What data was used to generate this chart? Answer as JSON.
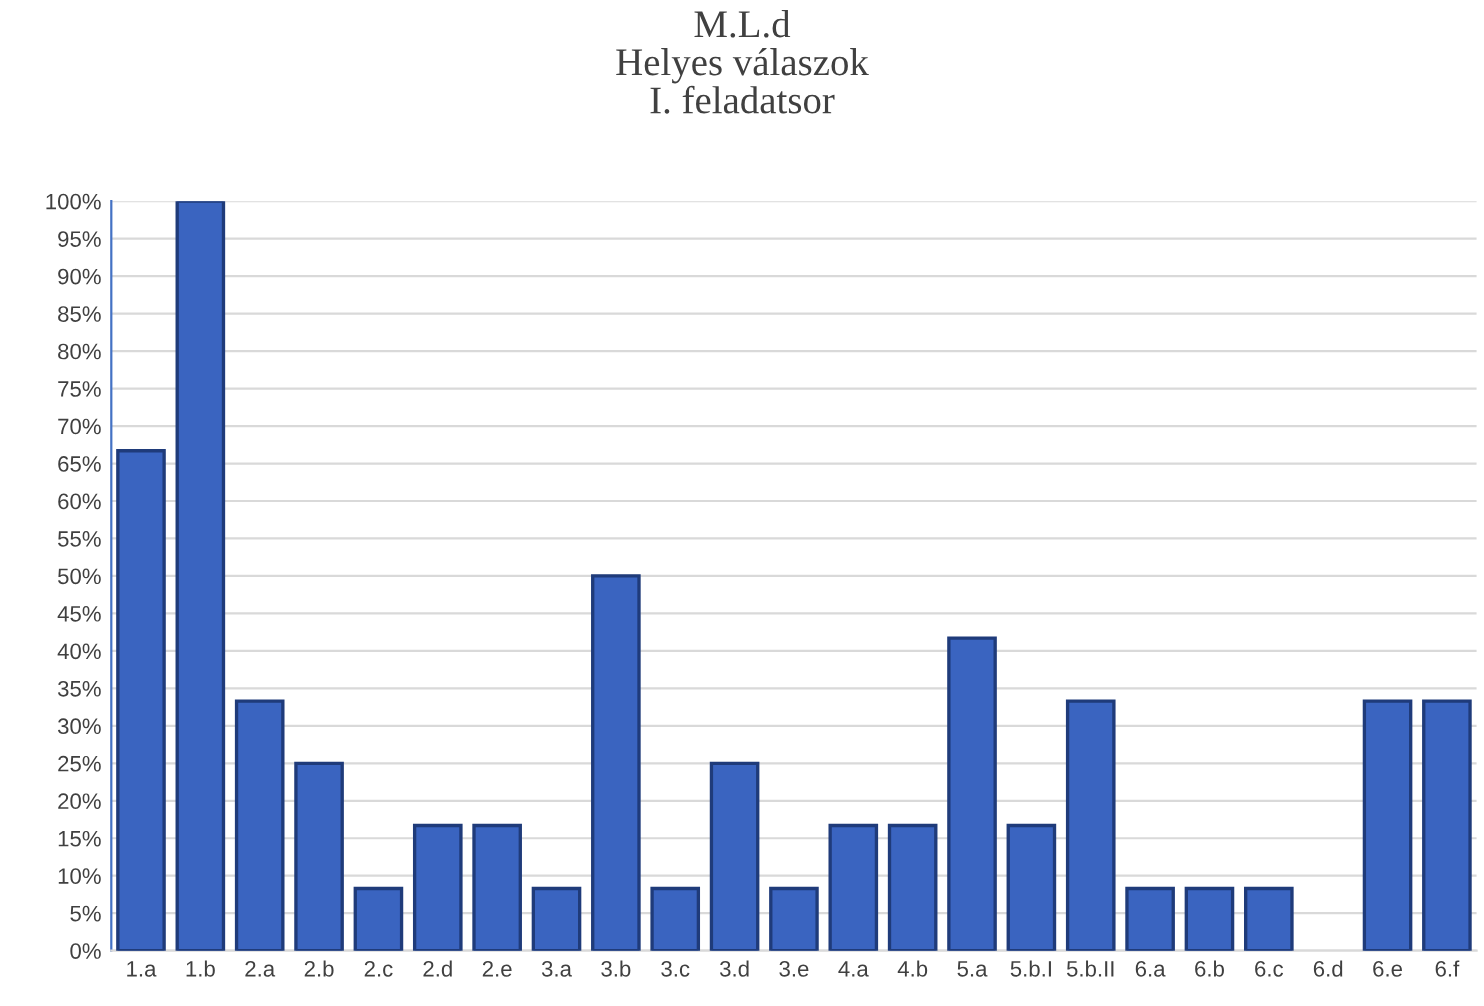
{
  "chart_data": {
    "type": "bar",
    "title": "M.L.d\nHelyes válaszok\nI. feladatsor",
    "categories": [
      "1.a",
      "1.b",
      "2.a",
      "2.b",
      "2.c",
      "2.d",
      "2.e",
      "3.a",
      "3.b",
      "3.c",
      "3.d",
      "3.e",
      "4.a",
      "4.b",
      "5.a",
      "5.b.I",
      "5.b.II",
      "6.a",
      "6.b",
      "6.c",
      "6.d",
      "6.e",
      "6.f"
    ],
    "values": [
      66.7,
      100,
      33.3,
      25,
      8.3,
      16.7,
      16.7,
      8.3,
      50,
      8.3,
      25,
      8.3,
      16.7,
      16.7,
      41.7,
      16.7,
      33.3,
      8.3,
      8.3,
      8.3,
      0,
      33.3,
      33.3
    ],
    "color": "#3a64c0",
    "ylim": [
      0,
      100
    ],
    "yticks": [
      {
        "value": 0,
        "label": "0%"
      },
      {
        "value": 5,
        "label": "5%"
      },
      {
        "value": 10,
        "label": "10%"
      },
      {
        "value": 15,
        "label": "15%"
      },
      {
        "value": 20,
        "label": "20%"
      },
      {
        "value": 25,
        "label": "25%"
      },
      {
        "value": 30,
        "label": "30%"
      },
      {
        "value": 35,
        "label": "35%"
      },
      {
        "value": 40,
        "label": "40%"
      },
      {
        "value": 45,
        "label": "45%"
      },
      {
        "value": 50,
        "label": "50%"
      },
      {
        "value": 55,
        "label": "55%"
      },
      {
        "value": 60,
        "label": "60%"
      },
      {
        "value": 65,
        "label": "65%"
      },
      {
        "value": 70,
        "label": "70%"
      },
      {
        "value": 75,
        "label": "75%"
      },
      {
        "value": 80,
        "label": "80%"
      },
      {
        "value": 85,
        "label": "85%"
      },
      {
        "value": 90,
        "label": "90%"
      },
      {
        "value": 95,
        "label": "95%"
      },
      {
        "value": 100,
        "label": "100%"
      }
    ],
    "grid": "y"
  }
}
